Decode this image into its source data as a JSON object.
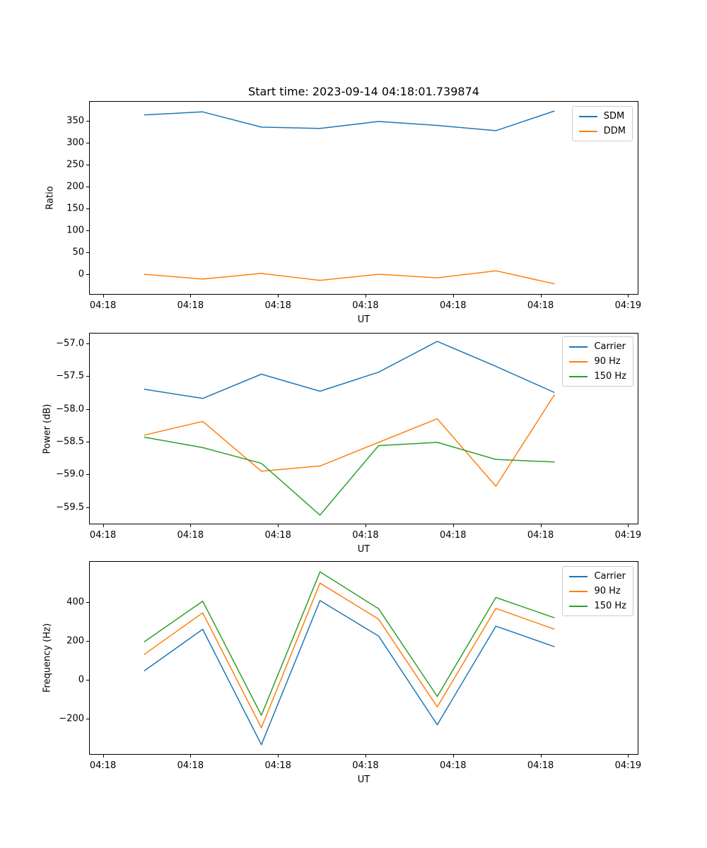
{
  "title": "Start time: 2023-09-14 04:18:01.739874",
  "chart_data": [
    {
      "type": "line",
      "ylabel": "Ratio",
      "xlabel": "UT",
      "grid": false,
      "legend_position": "upper right",
      "x_seconds": [
        4.7,
        11.4,
        18.1,
        24.8,
        31.5,
        38.2,
        44.9,
        51.6
      ],
      "xlim_seconds": [
        -1.5,
        61.1
      ],
      "xticks": [
        {
          "seconds": 0,
          "label": "04:18"
        },
        {
          "seconds": 10,
          "label": "04:18"
        },
        {
          "seconds": 20,
          "label": "04:18"
        },
        {
          "seconds": 30,
          "label": "04:18"
        },
        {
          "seconds": 40,
          "label": "04:18"
        },
        {
          "seconds": 50,
          "label": "04:18"
        },
        {
          "seconds": 60,
          "label": "04:19"
        }
      ],
      "ylim": [
        -45,
        394
      ],
      "yticks": [
        {
          "value": 0,
          "label": "0"
        },
        {
          "value": 50,
          "label": "50"
        },
        {
          "value": 100,
          "label": "100"
        },
        {
          "value": 150,
          "label": "150"
        },
        {
          "value": 200,
          "label": "200"
        },
        {
          "value": 250,
          "label": "250"
        },
        {
          "value": 300,
          "label": "300"
        },
        {
          "value": 350,
          "label": "350"
        }
      ],
      "series": [
        {
          "name": "SDM",
          "color": "#1f77b4",
          "values": [
            364,
            371,
            336,
            333,
            349,
            340,
            328,
            373
          ]
        },
        {
          "name": "DDM",
          "color": "#ff7f0e",
          "values": [
            0,
            -11,
            2,
            -14,
            0,
            -8,
            8,
            -22
          ]
        }
      ]
    },
    {
      "type": "line",
      "ylabel": "Power (dB)",
      "xlabel": "UT",
      "grid": false,
      "legend_position": "upper right",
      "x_seconds": [
        4.7,
        11.4,
        18.1,
        24.8,
        31.5,
        38.2,
        44.9,
        51.6
      ],
      "xlim_seconds": [
        -1.5,
        61.1
      ],
      "xticks": [
        {
          "seconds": 0,
          "label": "04:18"
        },
        {
          "seconds": 10,
          "label": "04:18"
        },
        {
          "seconds": 20,
          "label": "04:18"
        },
        {
          "seconds": 30,
          "label": "04:18"
        },
        {
          "seconds": 40,
          "label": "04:18"
        },
        {
          "seconds": 50,
          "label": "04:18"
        },
        {
          "seconds": 60,
          "label": "04:19"
        }
      ],
      "ylim": [
        -59.75,
        -56.85
      ],
      "yticks": [
        {
          "value": -57.0,
          "label": "−57.0"
        },
        {
          "value": -57.5,
          "label": "−57.5"
        },
        {
          "value": -58.0,
          "label": "−58.0"
        },
        {
          "value": -58.5,
          "label": "−58.5"
        },
        {
          "value": -59.0,
          "label": "−59.0"
        },
        {
          "value": -59.5,
          "label": "−59.5"
        }
      ],
      "series": [
        {
          "name": "Carrier",
          "color": "#1f77b4",
          "values": [
            -57.7,
            -57.84,
            -57.47,
            -57.73,
            -57.44,
            -56.97,
            -57.35,
            -57.75
          ]
        },
        {
          "name": "90 Hz",
          "color": "#ff7f0e",
          "values": [
            -58.4,
            -58.19,
            -58.95,
            -58.87,
            -58.51,
            -58.15,
            -59.18,
            -57.78
          ]
        },
        {
          "name": "150 Hz",
          "color": "#2ca02c",
          "values": [
            -58.43,
            -58.59,
            -58.83,
            -59.62,
            -58.56,
            -58.51,
            -58.77,
            -58.81
          ]
        }
      ]
    },
    {
      "type": "line",
      "ylabel": "Frequency (Hz)",
      "xlabel": "UT",
      "grid": false,
      "legend_position": "upper right",
      "x_seconds": [
        4.7,
        11.4,
        18.1,
        24.8,
        31.5,
        38.2,
        44.9,
        51.6
      ],
      "xlim_seconds": [
        -1.5,
        61.1
      ],
      "xticks": [
        {
          "seconds": 0,
          "label": "04:18"
        },
        {
          "seconds": 10,
          "label": "04:18"
        },
        {
          "seconds": 20,
          "label": "04:18"
        },
        {
          "seconds": 30,
          "label": "04:18"
        },
        {
          "seconds": 40,
          "label": "04:18"
        },
        {
          "seconds": 50,
          "label": "04:18"
        },
        {
          "seconds": 60,
          "label": "04:19"
        }
      ],
      "ylim": [
        -383,
        608
      ],
      "yticks": [
        {
          "value": -200,
          "label": "−200"
        },
        {
          "value": 0,
          "label": "0"
        },
        {
          "value": 200,
          "label": "200"
        },
        {
          "value": 400,
          "label": "400"
        }
      ],
      "series": [
        {
          "name": "Carrier",
          "color": "#1f77b4",
          "values": [
            45,
            260,
            -335,
            408,
            225,
            -232,
            276,
            170
          ]
        },
        {
          "name": "90 Hz",
          "color": "#ff7f0e",
          "values": [
            130,
            345,
            -248,
            498,
            312,
            -140,
            368,
            260
          ]
        },
        {
          "name": "150 Hz",
          "color": "#2ca02c",
          "values": [
            195,
            405,
            -183,
            556,
            366,
            -86,
            424,
            319
          ]
        }
      ]
    }
  ]
}
